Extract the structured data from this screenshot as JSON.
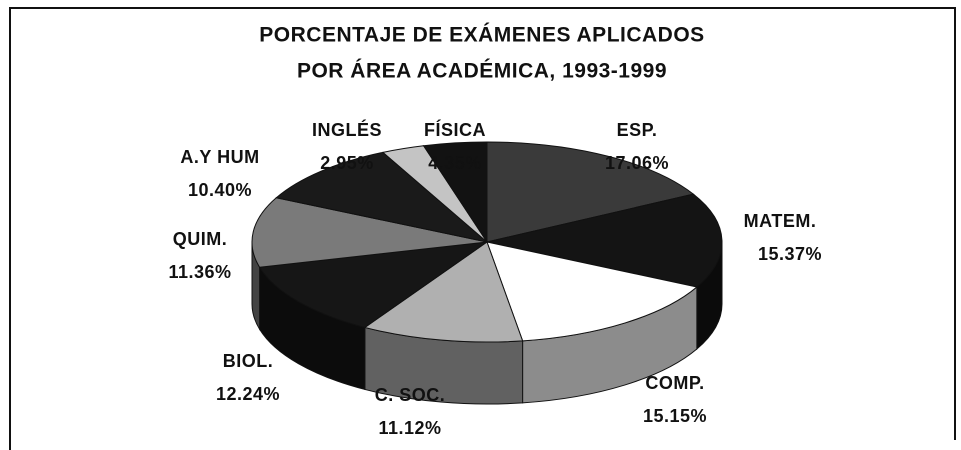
{
  "chart_data": {
    "type": "pie",
    "title": [
      "PORCENTAJE DE EXÁMENES APLICADOS",
      "POR ÁREA ACADÉMICA, 1993-1999"
    ],
    "categories": [
      "ESP.",
      "MATEM.",
      "COMP.",
      "C. SOC.",
      "BIOL.",
      "QUIM.",
      "A.Y HUM",
      "INGLÉS",
      "FÍSICA"
    ],
    "values": [
      17.06,
      15.37,
      15.15,
      11.12,
      12.24,
      11.36,
      10.4,
      2.95,
      4.35
    ],
    "value_labels": [
      "17.06%",
      "15.37%",
      "15.15%",
      "11.12%",
      "12.24%",
      "11.36%",
      "10.40%",
      "2.95%",
      "4.35%"
    ],
    "colors": [
      "#3a3a3a",
      "#141414",
      "#ffffff",
      "#b0b0b0",
      "#161616",
      "#7a7a7a",
      "#1a1a1a",
      "#c4c4c4",
      "#121212"
    ]
  }
}
